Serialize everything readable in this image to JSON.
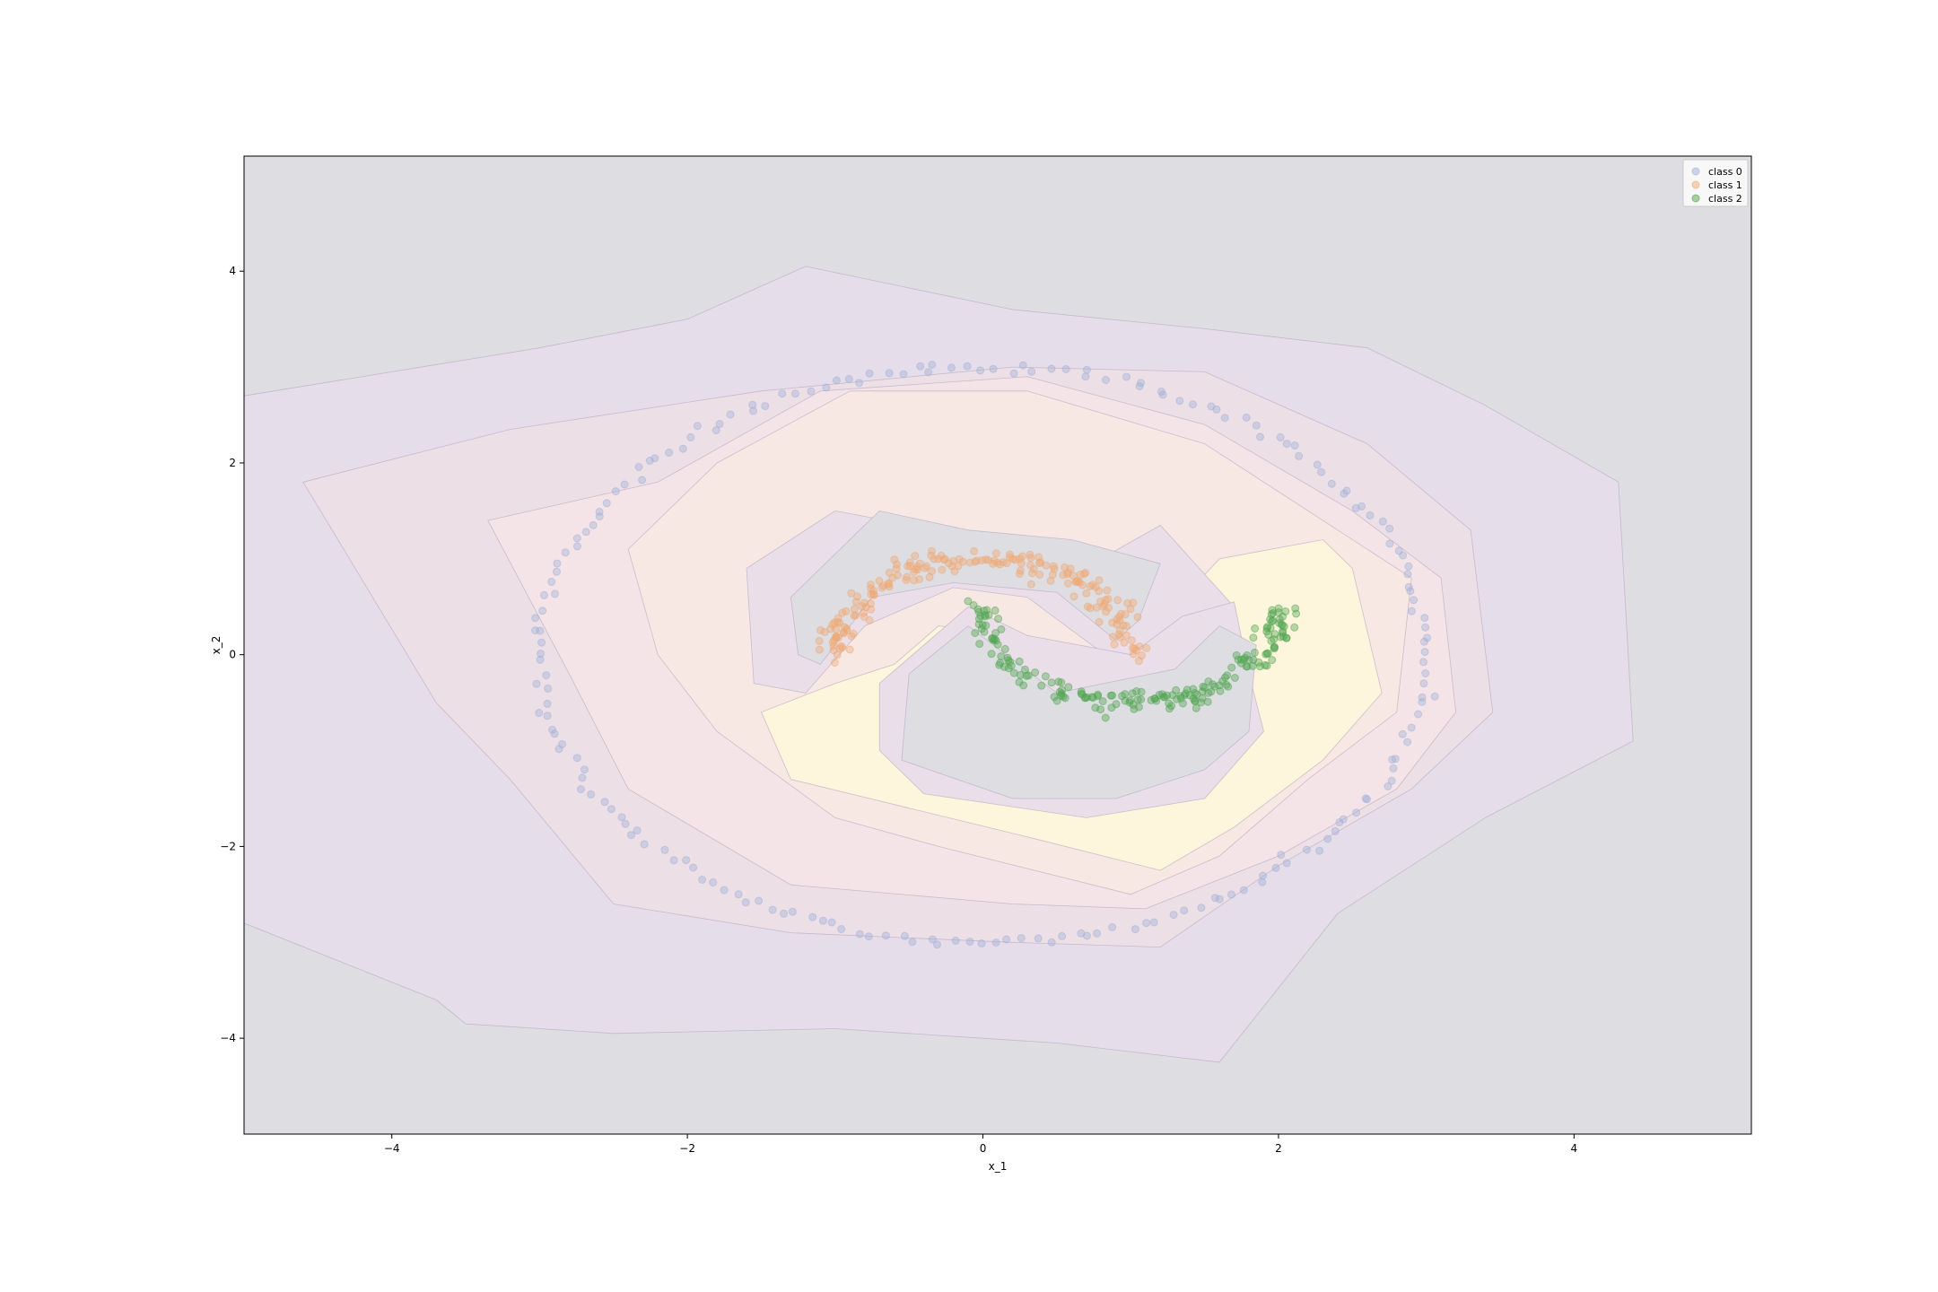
{
  "chart_data": {
    "type": "scatter",
    "title": "",
    "xlabel": "x_1",
    "ylabel": "x_2",
    "xlim": [
      -5.0,
      5.2
    ],
    "ylim": [
      -5.0,
      5.2
    ],
    "xticks": [
      -4,
      -2,
      0,
      2,
      4
    ],
    "yticks": [
      -4,
      -2,
      0,
      2,
      4
    ],
    "xtick_labels": [
      "−4",
      "−2",
      "0",
      "2",
      "4"
    ],
    "ytick_labels": [
      "−4",
      "−2",
      "0",
      "2",
      "4"
    ],
    "grid": false,
    "legend_position": "top-right",
    "background_contour": {
      "description_colors": [
        "#dddde2",
        "#e5dde9",
        "#f4e4e8",
        "#fbeedf",
        "#fdf6dc"
      ],
      "levels": [
        {
          "fill": "#e5dde9",
          "points": [
            [
              -5.0,
              2.7
            ],
            [
              -3.0,
              3.2
            ],
            [
              -2.0,
              3.5
            ],
            [
              -1.2,
              4.05
            ],
            [
              0.2,
              3.6
            ],
            [
              1.5,
              3.4
            ],
            [
              2.6,
              3.2
            ],
            [
              3.4,
              2.6
            ],
            [
              4.3,
              1.8
            ],
            [
              4.4,
              -0.9
            ],
            [
              3.4,
              -1.7
            ],
            [
              2.4,
              -2.7
            ],
            [
              1.6,
              -4.25
            ],
            [
              0.5,
              -4.05
            ],
            [
              -1.0,
              -3.9
            ],
            [
              -2.5,
              -3.95
            ],
            [
              -3.5,
              -3.85
            ],
            [
              -3.7,
              -3.6
            ],
            [
              -5.0,
              -2.8
            ]
          ]
        },
        {
          "fill": "#ecdfe6",
          "points": [
            [
              -4.6,
              1.8
            ],
            [
              -3.2,
              2.35
            ],
            [
              -1.5,
              2.75
            ],
            [
              0.2,
              3.0
            ],
            [
              1.5,
              2.95
            ],
            [
              2.6,
              2.2
            ],
            [
              3.3,
              1.3
            ],
            [
              3.45,
              -0.6
            ],
            [
              2.9,
              -1.4
            ],
            [
              2.0,
              -2.2
            ],
            [
              1.2,
              -3.05
            ],
            [
              0.2,
              -3.0
            ],
            [
              -1.3,
              -2.9
            ],
            [
              -2.5,
              -2.6
            ],
            [
              -3.2,
              -1.3
            ],
            [
              -3.7,
              -0.5
            ]
          ]
        },
        {
          "fill": "#f4e4e8",
          "points": [
            [
              -3.35,
              1.4
            ],
            [
              -2.2,
              1.8
            ],
            [
              -1.1,
              2.75
            ],
            [
              0.3,
              2.9
            ],
            [
              1.5,
              2.4
            ],
            [
              2.5,
              1.5
            ],
            [
              3.1,
              0.8
            ],
            [
              3.2,
              -0.6
            ],
            [
              2.8,
              -1.4
            ],
            [
              2.0,
              -2.1
            ],
            [
              1.1,
              -2.65
            ],
            [
              0.2,
              -2.6
            ],
            [
              -1.3,
              -2.4
            ],
            [
              -2.4,
              -1.4
            ],
            [
              -2.8,
              -0.2
            ]
          ]
        },
        {
          "fill": "#f8e8e4",
          "points": [
            [
              -2.4,
              1.1
            ],
            [
              -1.8,
              2.0
            ],
            [
              -0.9,
              2.75
            ],
            [
              0.3,
              2.75
            ],
            [
              1.5,
              2.2
            ],
            [
              2.3,
              1.4
            ],
            [
              2.9,
              0.8
            ],
            [
              2.8,
              -0.6
            ],
            [
              2.2,
              -1.3
            ],
            [
              1.6,
              -2.1
            ],
            [
              1.0,
              -2.5
            ],
            [
              -0.3,
              -2.0
            ],
            [
              -1.0,
              -1.7
            ],
            [
              -1.8,
              -0.8
            ],
            [
              -2.2,
              0.0
            ]
          ]
        },
        {
          "fill": "#fdf5dc",
          "points": [
            [
              1.6,
              1.0
            ],
            [
              2.3,
              1.2
            ],
            [
              2.5,
              0.9
            ],
            [
              2.7,
              -0.4
            ],
            [
              2.3,
              -1.1
            ],
            [
              1.7,
              -1.8
            ],
            [
              1.2,
              -2.25
            ],
            [
              0.3,
              -1.9
            ],
            [
              -0.5,
              -1.6
            ],
            [
              -1.3,
              -1.3
            ],
            [
              -1.5,
              -0.6
            ],
            [
              -1.0,
              -0.3
            ],
            [
              -0.6,
              -0.1
            ],
            [
              -0.3,
              0.3
            ],
            [
              0.3,
              0.2
            ],
            [
              0.8,
              -0.1
            ],
            [
              1.3,
              0.5
            ]
          ]
        },
        {
          "fill": "#eadfe8",
          "points": [
            [
              -1.6,
              0.9
            ],
            [
              -1.0,
              1.5
            ],
            [
              -0.3,
              1.3
            ],
            [
              0.2,
              1.1
            ],
            [
              0.8,
              1.0
            ],
            [
              1.2,
              1.35
            ],
            [
              1.7,
              0.5
            ],
            [
              1.0,
              -0.2
            ],
            [
              0.3,
              0.6
            ],
            [
              -0.2,
              0.7
            ],
            [
              -0.8,
              0.3
            ],
            [
              -1.2,
              -0.4
            ],
            [
              -1.55,
              -0.3
            ]
          ]
        },
        {
          "fill": "#dddde2",
          "points": [
            [
              -1.3,
              0.6
            ],
            [
              -0.7,
              1.5
            ],
            [
              -0.1,
              1.3
            ],
            [
              0.6,
              1.2
            ],
            [
              1.2,
              0.95
            ],
            [
              1.05,
              0.35
            ],
            [
              0.9,
              0.15
            ],
            [
              0.5,
              0.65
            ],
            [
              -0.2,
              0.75
            ],
            [
              -0.75,
              0.6
            ],
            [
              -1.1,
              -0.1
            ],
            [
              -1.25,
              0.0
            ]
          ]
        },
        {
          "fill": "#eadfe8",
          "points": [
            [
              -0.7,
              -0.3
            ],
            [
              -0.7,
              -1.0
            ],
            [
              -0.4,
              -1.45
            ],
            [
              0.7,
              -1.7
            ],
            [
              1.5,
              -1.5
            ],
            [
              1.9,
              -0.8
            ],
            [
              1.8,
              -0.2
            ],
            [
              1.7,
              0.55
            ],
            [
              1.35,
              0.4
            ],
            [
              1.0,
              0.0
            ],
            [
              0.3,
              0.2
            ],
            [
              -0.1,
              0.5
            ]
          ]
        },
        {
          "fill": "#dddde2",
          "points": [
            [
              -0.5,
              -0.2
            ],
            [
              -0.55,
              -1.1
            ],
            [
              0.2,
              -1.5
            ],
            [
              0.9,
              -1.5
            ],
            [
              1.5,
              -1.2
            ],
            [
              1.8,
              -0.8
            ],
            [
              1.85,
              0.1
            ],
            [
              1.6,
              0.3
            ],
            [
              1.3,
              -0.15
            ],
            [
              0.5,
              -0.4
            ],
            [
              -0.1,
              0.3
            ],
            [
              -0.3,
              0.05
            ]
          ]
        }
      ]
    },
    "series": [
      {
        "name": "class 0",
        "color": "#9fb0d6",
        "marker": "circle",
        "shape": "circle",
        "center": [
          0.0,
          0.0
        ],
        "radius": 3.0,
        "count": 200,
        "noise": 0.03
      },
      {
        "name": "class 1",
        "color": "#f0a870",
        "marker": "circle",
        "shape": "upper-moon",
        "center": [
          0.0,
          0.0
        ],
        "radius": 1.0,
        "count": 200,
        "noise": 0.06
      },
      {
        "name": "class 2",
        "color": "#4fa64f",
        "marker": "circle",
        "shape": "lower-moon",
        "center": [
          1.0,
          0.5
        ],
        "radius": 1.0,
        "count": 200,
        "noise": 0.06
      }
    ],
    "legend": [
      "class 0",
      "class 1",
      "class 2"
    ]
  }
}
